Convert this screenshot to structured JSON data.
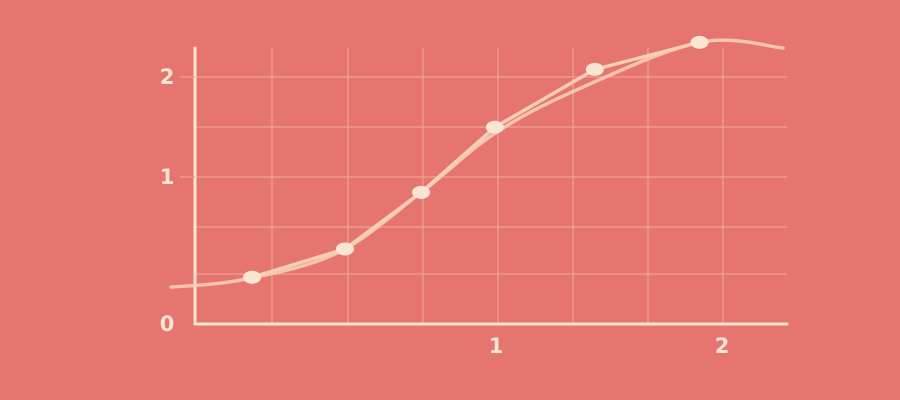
{
  "colors": {
    "background": "#e5756e",
    "axis": "#f8e6d2",
    "grid": "#ef9a8c",
    "line": "#f6cdb5",
    "marker": "#f8e6d2"
  },
  "chart_data": {
    "type": "line",
    "title": "",
    "xlabel": "",
    "ylabel": "",
    "xlim": [
      -0.1,
      2.38
    ],
    "ylim": [
      0,
      2.27
    ],
    "grid": true,
    "x_ticks": [
      {
        "value": 0,
        "label": ""
      },
      {
        "value": 1.21,
        "label": "1"
      },
      {
        "value": 2.2,
        "label": "2"
      }
    ],
    "y_ticks": [
      {
        "value": 0,
        "label": "0"
      },
      {
        "value": 1.0,
        "label": "1"
      },
      {
        "value": 2.0,
        "label": "2"
      }
    ],
    "series": [
      {
        "name": "",
        "kind": "markers",
        "x": [
          0.24,
          0.63,
          0.95,
          1.26,
          1.68,
          2.12
        ],
        "y": [
          0.38,
          0.61,
          1.07,
          1.6,
          2.07,
          2.29
        ]
      },
      {
        "name": "",
        "kind": "smooth",
        "x": [
          -0.1,
          0.2,
          0.6,
          0.95,
          1.26,
          1.6,
          2.12,
          2.38
        ],
        "y": [
          0.3,
          0.36,
          0.58,
          1.07,
          1.55,
          1.9,
          2.29,
          2.76
        ]
      }
    ]
  }
}
